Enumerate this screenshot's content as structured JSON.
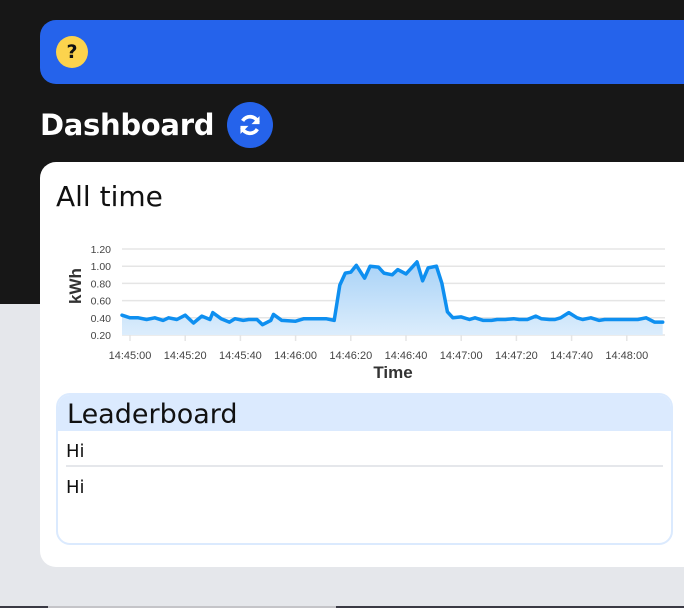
{
  "banner": {
    "help_icon": "question-mark-icon",
    "help_label": "?",
    "color": "#2563eb",
    "help_color": "#fcd34d"
  },
  "header": {
    "title": "Dashboard",
    "refresh_icon": "refresh-icon"
  },
  "card": {
    "title": "All time"
  },
  "chart_data": {
    "type": "area",
    "title": "All time",
    "xlabel": "Time",
    "ylabel": "kWh",
    "ylim": [
      0.2,
      1.2
    ],
    "yticks": [
      "0.20",
      "0.40",
      "0.60",
      "0.80",
      "1.00",
      "1.20"
    ],
    "xticks": [
      "14:45:00",
      "14:45:20",
      "14:45:40",
      "14:46:00",
      "14:46:20",
      "14:46:40",
      "14:47:00",
      "14:47:20",
      "14:47:40",
      "14:48:00"
    ],
    "grid": true,
    "legend": false,
    "line_color": "#0e8ff0",
    "fill_color": "#cfe6fb",
    "x_seconds_from_14_45_00": [
      -3,
      0,
      3,
      6,
      9,
      12,
      14,
      17,
      20,
      23,
      26,
      29,
      30,
      33,
      36,
      38,
      41,
      43,
      46,
      48,
      51,
      52,
      55,
      60,
      63,
      65,
      68,
      71,
      74,
      76,
      78,
      80,
      82,
      85,
      87,
      90,
      92,
      95,
      97,
      100,
      102,
      104,
      106,
      108,
      111,
      113,
      115,
      117,
      120,
      123,
      125,
      128,
      131,
      133,
      136,
      139,
      141,
      144,
      147,
      149,
      152,
      154,
      156,
      159,
      162,
      164,
      167,
      170,
      172,
      175,
      178,
      181,
      184,
      187,
      190,
      193
    ],
    "values": [
      0.43,
      0.4,
      0.4,
      0.38,
      0.4,
      0.37,
      0.4,
      0.38,
      0.43,
      0.34,
      0.42,
      0.38,
      0.46,
      0.39,
      0.35,
      0.39,
      0.37,
      0.38,
      0.38,
      0.32,
      0.37,
      0.44,
      0.37,
      0.36,
      0.39,
      0.39,
      0.39,
      0.39,
      0.37,
      0.78,
      0.92,
      0.93,
      1.01,
      0.86,
      1.0,
      0.99,
      0.92,
      0.9,
      0.96,
      0.91,
      0.98,
      1.05,
      0.83,
      0.98,
      1.0,
      0.8,
      0.47,
      0.4,
      0.41,
      0.38,
      0.4,
      0.37,
      0.37,
      0.38,
      0.38,
      0.39,
      0.38,
      0.38,
      0.42,
      0.39,
      0.38,
      0.38,
      0.4,
      0.46,
      0.4,
      0.38,
      0.4,
      0.37,
      0.38,
      0.38,
      0.38,
      0.38,
      0.38,
      0.4,
      0.35,
      0.35
    ]
  },
  "leaderboard": {
    "title": "Leaderboard",
    "rows": [
      "Hi",
      "Hi"
    ]
  }
}
